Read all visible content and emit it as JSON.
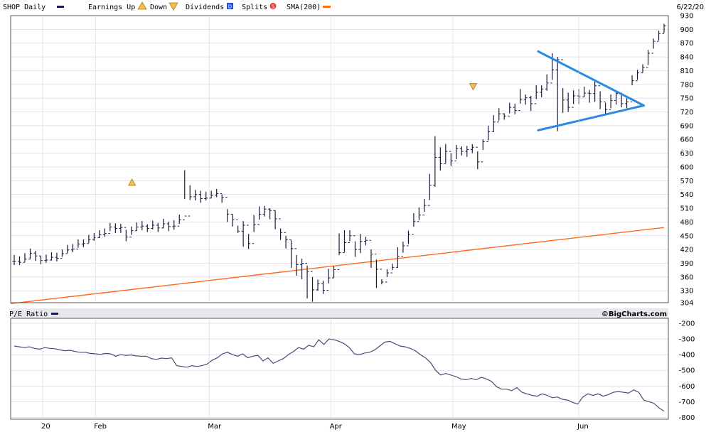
{
  "header": {
    "symbol_label": "SHOP Daily",
    "earnings_label": "Earnings Up",
    "earnings_down_label": "Down",
    "dividends_label": "Dividends",
    "dividends_badge": "D",
    "splits_label": "Splits",
    "splits_badge": "S",
    "sma_label": "SMA(200)",
    "last_date": "6/22/20"
  },
  "lower_panel": {
    "title": "P/E Ratio",
    "brand": "©BigCharts.com"
  },
  "colors": {
    "price_bar": "#1a1a3a",
    "sma": "#ff6a1a",
    "pe_line": "#4a4a7a",
    "triangle": "#2a8ae0",
    "marker": "#e0a020",
    "grid": "#cfd3dc"
  },
  "chart_data": [
    {
      "type": "ohlc",
      "title": "SHOP Daily",
      "x_start_date": "2020-01-14",
      "x_end_date": "2020-06-22",
      "ylim": [
        304,
        930
      ],
      "y_ticks": [
        304,
        330,
        360,
        390,
        420,
        450,
        480,
        510,
        540,
        570,
        600,
        630,
        660,
        690,
        720,
        750,
        780,
        810,
        840,
        870,
        900,
        930
      ],
      "x_ticks": [
        "20",
        "Feb",
        "Mar",
        "Apr",
        "May",
        "Jun"
      ],
      "grid": true,
      "close": [
        394,
        392,
        399,
        412,
        406,
        396,
        397,
        403,
        401,
        411,
        419,
        421,
        432,
        433,
        442,
        446,
        452,
        455,
        469,
        466,
        468,
        447,
        461,
        469,
        471,
        466,
        473,
        467,
        476,
        470,
        471,
        485,
        493,
        535,
        540,
        531,
        532,
        538,
        542,
        534,
        497,
        485,
        460,
        473,
        433,
        475,
        497,
        508,
        505,
        487,
        457,
        441,
        422,
        387,
        390,
        372,
        332,
        345,
        331,
        358,
        376,
        413,
        435,
        450,
        420,
        438,
        440,
        410,
        377,
        349,
        369,
        381,
        405,
        428,
        453,
        481,
        495,
        516,
        560,
        621,
        607,
        634,
        613,
        640,
        634,
        638,
        643,
        611,
        655,
        677,
        698,
        716,
        711,
        730,
        723,
        747,
        751,
        738,
        763,
        770,
        783,
        812,
        834,
        746,
        730,
        755,
        753,
        761,
        760,
        777,
        742,
        725,
        745,
        760,
        738,
        742,
        788,
        805,
        817,
        848,
        874,
        891,
        908
      ],
      "high": [
        408,
        405,
        412,
        422,
        417,
        406,
        409,
        414,
        413,
        420,
        430,
        432,
        442,
        442,
        452,
        456,
        462,
        466,
        478,
        477,
        476,
        463,
        470,
        479,
        482,
        475,
        483,
        478,
        487,
        481,
        484,
        496,
        593,
        560,
        550,
        548,
        546,
        548,
        552,
        540,
        508,
        497,
        472,
        482,
        454,
        495,
        514,
        515,
        510,
        505,
        466,
        450,
        440,
        408,
        400,
        385,
        360,
        354,
        352,
        378,
        384,
        455,
        462,
        462,
        438,
        454,
        448,
        420,
        398,
        355,
        377,
        389,
        425,
        437,
        461,
        499,
        512,
        530,
        585,
        667,
        643,
        650,
        630,
        648,
        645,
        646,
        650,
        634,
        660,
        690,
        713,
        728,
        717,
        740,
        738,
        770,
        758,
        755,
        778,
        778,
        802,
        848,
        840,
        772,
        762,
        767,
        770,
        775,
        768,
        786,
        765,
        740,
        758,
        765,
        762,
        750,
        800,
        812,
        824,
        855,
        880,
        897,
        912
      ],
      "low": [
        386,
        386,
        393,
        399,
        395,
        388,
        391,
        396,
        394,
        404,
        412,
        414,
        424,
        425,
        434,
        439,
        445,
        448,
        460,
        456,
        456,
        438,
        452,
        461,
        462,
        458,
        464,
        458,
        466,
        460,
        463,
        476,
        530,
        528,
        527,
        522,
        527,
        532,
        534,
        522,
        480,
        470,
        456,
        426,
        421,
        458,
        485,
        492,
        486,
        464,
        441,
        422,
        380,
        363,
        355,
        313,
        306,
        330,
        323,
        346,
        358,
        408,
        414,
        438,
        404,
        412,
        429,
        380,
        336,
        344,
        360,
        375,
        380,
        413,
        432,
        470,
        484,
        502,
        528,
        557,
        592,
        608,
        602,
        617,
        625,
        622,
        630,
        595,
        637,
        658,
        676,
        701,
        703,
        717,
        715,
        738,
        736,
        722,
        748,
        752,
        766,
        790,
        678,
        718,
        720,
        737,
        737,
        752,
        740,
        742,
        726,
        716,
        728,
        736,
        730,
        728,
        778,
        790,
        806,
        822,
        858,
        876,
        892
      ],
      "sma200": {
        "name": "SMA(200)",
        "start": 302,
        "end": 468
      },
      "earnings_markers": [
        {
          "direction": "up",
          "date": "2020-02-12",
          "price": 566
        },
        {
          "direction": "down",
          "date": "2020-05-06",
          "price": 776
        }
      ],
      "triangle_pattern": {
        "upper": [
          {
            "date": "2020-05-22",
            "price": 852
          },
          {
            "date": "2020-06-17",
            "price": 734
          }
        ],
        "lower": [
          {
            "date": "2020-05-22",
            "price": 680
          },
          {
            "date": "2020-06-17",
            "price": 734
          }
        ]
      }
    },
    {
      "type": "line",
      "title": "P/E Ratio",
      "ylim": [
        -780,
        -200
      ],
      "y_ticks": [
        -200,
        -300,
        -400,
        -500,
        -600,
        -700,
        -800
      ],
      "values": [
        -345,
        -350,
        -355,
        -350,
        -360,
        -365,
        -355,
        -360,
        -362,
        -370,
        -375,
        -372,
        -380,
        -385,
        -385,
        -392,
        -395,
        -398,
        -392,
        -395,
        -410,
        -400,
        -405,
        -402,
        -408,
        -410,
        -410,
        -425,
        -430,
        -422,
        -425,
        -420,
        -470,
        -475,
        -480,
        -470,
        -475,
        -470,
        -460,
        -435,
        -420,
        -395,
        -385,
        -400,
        -410,
        -395,
        -420,
        -410,
        -405,
        -440,
        -420,
        -455,
        -440,
        -425,
        -400,
        -380,
        -355,
        -365,
        -340,
        -350,
        -305,
        -335,
        -300,
        -305,
        -315,
        -330,
        -355,
        -395,
        -400,
        -390,
        -385,
        -370,
        -345,
        -320,
        -315,
        -330,
        -345,
        -350,
        -360,
        -375,
        -400,
        -420,
        -450,
        -500,
        -530,
        -520,
        -530,
        -540,
        -555,
        -560,
        -552,
        -560,
        -545,
        -555,
        -570,
        -605,
        -620,
        -620,
        -630,
        -610,
        -640,
        -650,
        -660,
        -665,
        -650,
        -660,
        -675,
        -670,
        -685,
        -690,
        -705,
        -715,
        -670,
        -650,
        -660,
        -650,
        -665,
        -655,
        -640,
        -635,
        -640,
        -645,
        -625,
        -640,
        -690,
        -700,
        -710,
        -740,
        -760
      ]
    }
  ]
}
